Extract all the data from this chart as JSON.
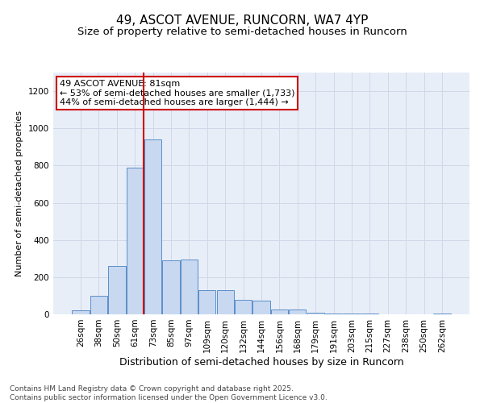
{
  "title_line1": "49, ASCOT AVENUE, RUNCORN, WA7 4YP",
  "title_line2": "Size of property relative to semi-detached houses in Runcorn",
  "xlabel": "Distribution of semi-detached houses by size in Runcorn",
  "ylabel": "Number of semi-detached properties",
  "categories": [
    "26sqm",
    "38sqm",
    "50sqm",
    "61sqm",
    "73sqm",
    "85sqm",
    "97sqm",
    "109sqm",
    "120sqm",
    "132sqm",
    "144sqm",
    "156sqm",
    "168sqm",
    "179sqm",
    "191sqm",
    "203sqm",
    "215sqm",
    "227sqm",
    "238sqm",
    "250sqm",
    "262sqm"
  ],
  "values": [
    20,
    100,
    260,
    790,
    940,
    290,
    295,
    130,
    130,
    80,
    75,
    25,
    25,
    10,
    5,
    5,
    5,
    0,
    0,
    0,
    5
  ],
  "bar_color": "#c8d8f0",
  "bar_edge_color": "#5b8fc9",
  "grid_color": "#d0d8e8",
  "bg_color": "#e8eef8",
  "vline_color": "#cc0000",
  "vline_x": 3.5,
  "annotation_text": "49 ASCOT AVENUE: 81sqm\n← 53% of semi-detached houses are smaller (1,733)\n44% of semi-detached houses are larger (1,444) →",
  "annotation_box_color": "white",
  "annotation_box_edge": "#cc0000",
  "ylim": [
    0,
    1300
  ],
  "yticks": [
    0,
    200,
    400,
    600,
    800,
    1000,
    1200
  ],
  "footnote": "Contains HM Land Registry data © Crown copyright and database right 2025.\nContains public sector information licensed under the Open Government Licence v3.0.",
  "title_fontsize": 11,
  "subtitle_fontsize": 9.5,
  "xlabel_fontsize": 9,
  "ylabel_fontsize": 8,
  "tick_fontsize": 7.5,
  "annot_fontsize": 8,
  "footnote_fontsize": 6.5
}
